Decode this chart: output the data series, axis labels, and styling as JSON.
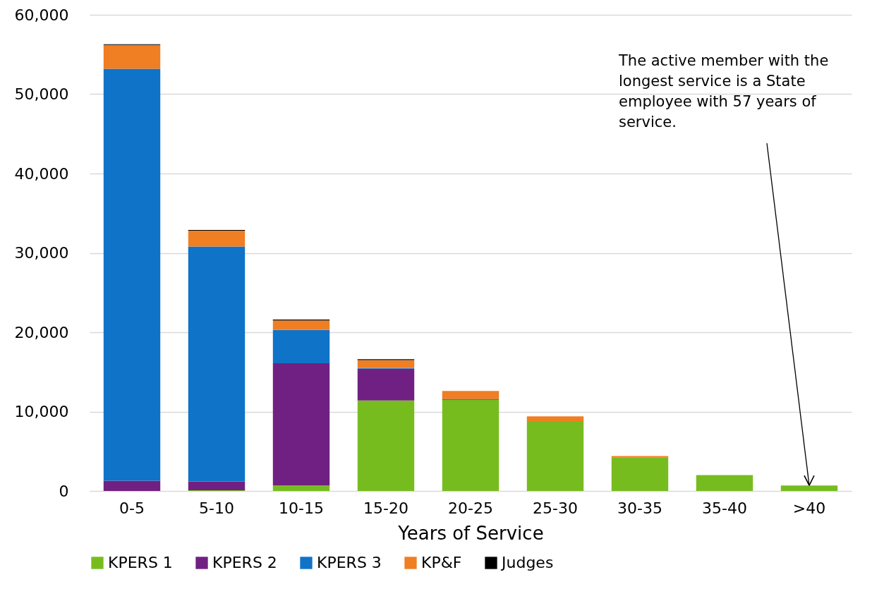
{
  "chart_data": {
    "type": "bar",
    "stacked": true,
    "xlabel": "Years of Service",
    "categories": [
      "0-5",
      "5-10",
      "10-15",
      "15-20",
      "20-25",
      "25-30",
      "30-35",
      "35-40",
      ">40"
    ],
    "series": [
      {
        "name": "KPERS 1",
        "color": "#77bc1f",
        "values": [
          null,
          100,
          700,
          11400,
          11500,
          8800,
          4200,
          2000,
          700
        ]
      },
      {
        "name": "KPERS 2",
        "color": "#702082",
        "values": [
          1300,
          1100,
          15400,
          4000,
          100,
          null,
          null,
          null,
          null
        ]
      },
      {
        "name": "KPERS 3",
        "color": "#0f73c8",
        "values": [
          51900,
          29600,
          4200,
          100,
          null,
          null,
          null,
          null,
          null
        ]
      },
      {
        "name": "KP&F",
        "color": "#f07e22",
        "values": [
          3000,
          2000,
          1200,
          1000,
          1000,
          600,
          200,
          null,
          null
        ]
      },
      {
        "name": "Judges",
        "color": "#000000",
        "values": [
          100,
          100,
          100,
          100,
          null,
          null,
          null,
          null,
          null
        ]
      }
    ],
    "ylim": [
      0,
      60000
    ],
    "yticks": [
      0,
      {
        "value": 10000,
        "label": "10,000"
      },
      {
        "value": 20000,
        "label": "20,000"
      },
      {
        "value": 30000,
        "label": "30,000"
      },
      {
        "value": 40000,
        "label": "40,000"
      },
      {
        "value": 50000,
        "label": "50,000"
      },
      {
        "value": 60000,
        "label": "60,000"
      }
    ],
    "grid": "y",
    "legend": "bottom",
    "annotations": [
      {
        "text": "The active member with the longest service is a State employee with 57 years of service.",
        "x": ">40",
        "y": 700
      }
    ]
  }
}
